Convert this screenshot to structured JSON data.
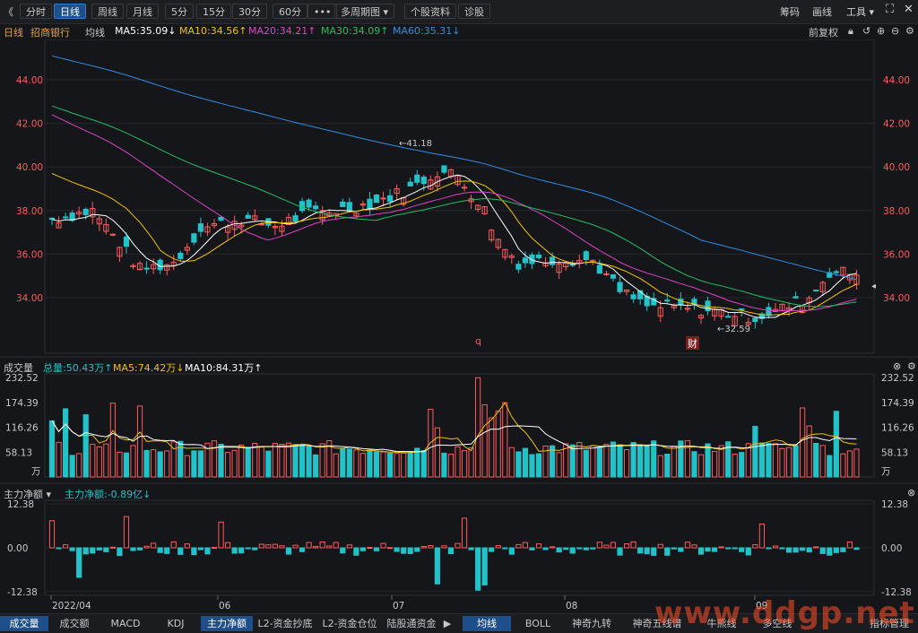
{
  "toolbar": {
    "back": "《",
    "tabs": [
      "分时",
      "日线",
      "周线",
      "月线",
      "5分",
      "15分",
      "30分",
      "60分",
      "•••",
      "多周期图 ▾",
      "个股资料",
      "诊股"
    ],
    "active": 1,
    "right": [
      "筹码",
      "画线",
      "工具 ▾"
    ],
    "fullscreen": "⛶"
  },
  "legend": {
    "period": "日线",
    "name": "招商银行",
    "avg": "均线",
    "ma5": "MA5:35.09↓",
    "ma10": "MA10:34.56↑",
    "ma20": "MA20:34.21↑",
    "ma30": "MA30:34.09↑",
    "ma60": "MA60:35.31↓",
    "adjust": "前复权"
  },
  "colors": {
    "up": "#ff5a5a",
    "down": "#22c3c8",
    "ma5": "#ffffff",
    "ma10": "#f2c200",
    "ma20": "#e040c8",
    "ma30": "#22c060",
    "ma60": "#2e8ee8"
  },
  "price_axis": [
    "44.00",
    "42.00",
    "40.00",
    "38.00",
    "36.00",
    "34.00"
  ],
  "price_annotations": {
    "high": "41.18",
    "low": "32.59",
    "q_mark": "q",
    "cai_mark": "财"
  },
  "volume": {
    "title": "成交量",
    "total": "总量:50.43万↑",
    "ma5": "MA5:74.42万↓",
    "ma10": "MA10:84.31万↑",
    "axis": [
      "232.52",
      "174.39",
      "116.26",
      "58.13"
    ],
    "unit": "万"
  },
  "flow": {
    "title": "主力净额 ▾",
    "value": "主力净额:-0.89亿↓",
    "axis": [
      "12.38",
      "0.00",
      "-12.38"
    ]
  },
  "date_axis": [
    "2022/04",
    "06",
    "07",
    "08",
    "09"
  ],
  "bottom_left_tabs": [
    "成交量",
    "成交额",
    "MACD",
    "KDJ",
    "主力净额",
    "L2-资金抄底",
    "L2-资金仓位",
    "陆股通资金"
  ],
  "bottom_left_active": [
    0,
    4
  ],
  "bottom_right_tabs": [
    "均线",
    "BOLL",
    "神奇九转",
    "神奇五线谱",
    "牛熊线",
    "多空线",
    "指标管理"
  ],
  "bottom_right_active": 0,
  "watermark": "www.ddgp.net"
}
